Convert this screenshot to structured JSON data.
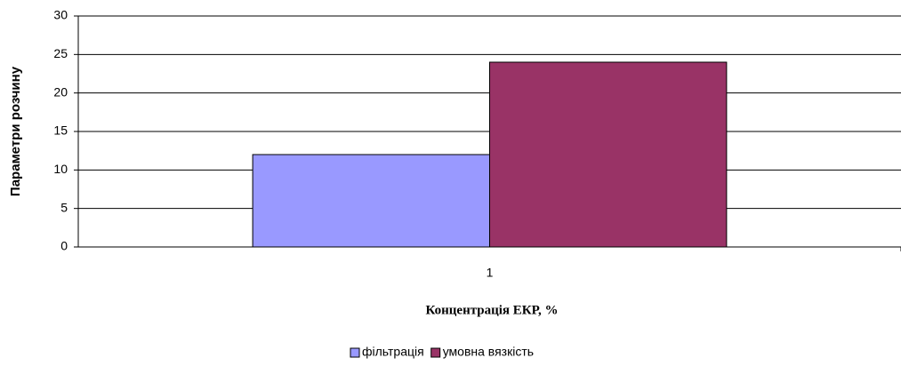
{
  "chart_data": {
    "type": "bar",
    "x_label": "Концентрація ЕКР, %",
    "y_label": "Параметри розчину",
    "categories": [
      "1"
    ],
    "series": [
      {
        "name": "фільтрація",
        "color": "#9999ff",
        "values": [
          12
        ]
      },
      {
        "name": "умовна вязкість",
        "color": "#993366",
        "values": [
          24
        ]
      }
    ],
    "ylim": [
      0,
      30
    ],
    "yticks": [
      0,
      5,
      10,
      15,
      20,
      25,
      30
    ],
    "grid": true,
    "legend": "bottom"
  }
}
